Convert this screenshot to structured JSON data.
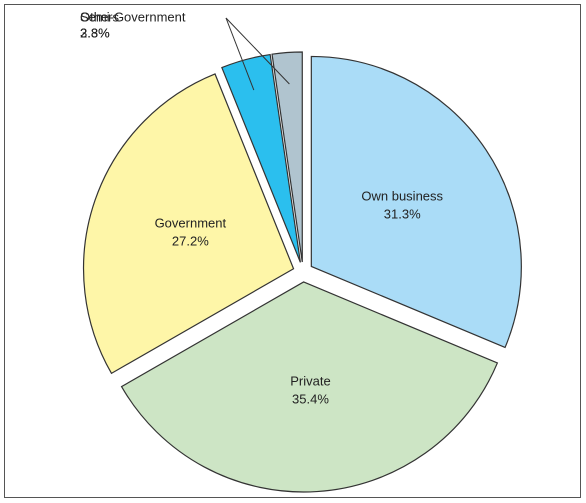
{
  "chart_data": {
    "type": "pie",
    "categories": [
      "Own business",
      "Private",
      "Government",
      "Semi-Government",
      "Others"
    ],
    "values": [
      31.3,
      35.4,
      27.2,
      3.8,
      2.3
    ],
    "value_labels": [
      "31.3%",
      "35.4%",
      "27.2%",
      "3.8%",
      "2.3%"
    ],
    "colors": [
      "#aadcf7",
      "#cde5c5",
      "#fef6a8",
      "#2bbfee",
      "#b0c4cf"
    ]
  }
}
